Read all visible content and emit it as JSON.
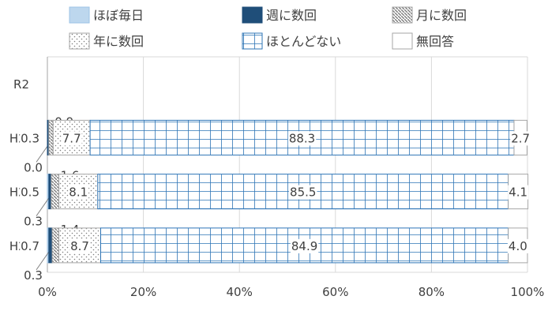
{
  "chart_data": {
    "type": "bar",
    "orientation": "horizontal",
    "stacked": true,
    "categories": [
      "R2",
      "H29",
      "H27",
      "H24"
    ],
    "series": [
      {
        "name": "ほぼ毎日",
        "values": [
          null,
          0.0,
          0.3,
          0.3
        ],
        "pattern": "solid-light",
        "color": "#bdd7ee",
        "labels": [
          null,
          "0.0",
          "0.3",
          "0.3"
        ]
      },
      {
        "name": "週に数回",
        "values": [
          null,
          0.3,
          0.5,
          0.7
        ],
        "pattern": "solid-dark",
        "color": "#1f4e79",
        "labels": [
          null,
          "0.3",
          "0.5",
          "0.7"
        ]
      },
      {
        "name": "月に数回",
        "values": [
          null,
          0.9,
          1.6,
          1.4
        ],
        "pattern": "diagonal",
        "color": "#7f7f7f",
        "labels": [
          null,
          "0.9",
          "1.6",
          "1.4"
        ]
      },
      {
        "name": "年に数回",
        "values": [
          null,
          7.7,
          8.1,
          8.7
        ],
        "pattern": "dots",
        "color": "#7f7f7f",
        "labels": [
          null,
          "7.7",
          "8.1",
          "8.7"
        ]
      },
      {
        "name": "ほとんどない",
        "values": [
          null,
          88.3,
          85.5,
          84.9
        ],
        "pattern": "grid",
        "color": "#2e75b6",
        "labels": [
          null,
          "88.3",
          "85.5",
          "84.9"
        ]
      },
      {
        "name": "無回答",
        "values": [
          null,
          2.7,
          4.1,
          4.0
        ],
        "pattern": "empty",
        "color": "#ffffff",
        "labels": [
          null,
          "2.7",
          "4.1",
          "4.0"
        ]
      }
    ],
    "x_axis": {
      "min": 0,
      "max": 100,
      "tick_labels": [
        "0%",
        "20%",
        "40%",
        "60%",
        "80%",
        "100%"
      ]
    },
    "grid": true,
    "legend_position": "top",
    "title": "",
    "xlabel": "",
    "ylabel": ""
  }
}
